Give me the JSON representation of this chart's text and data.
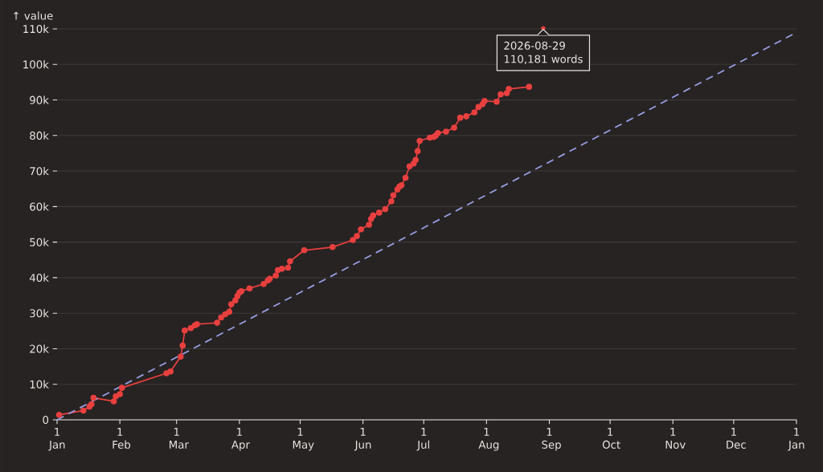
{
  "chart_data": {
    "type": "line",
    "ylabel": "↑ value",
    "grid": "y",
    "xlim": [
      "2026-01-01",
      "2027-01-01"
    ],
    "xticks": [
      {
        "value": "2026-01-01",
        "label": "1 Jan"
      },
      {
        "value": "2026-02-01",
        "label": "1 Feb"
      },
      {
        "value": "2026-03-01",
        "label": "1 Mar"
      },
      {
        "value": "2026-04-01",
        "label": "1 Apr"
      },
      {
        "value": "2026-05-01",
        "label": "1 May"
      },
      {
        "value": "2026-06-01",
        "label": "1 Jun"
      },
      {
        "value": "2026-07-01",
        "label": "1 Jul"
      },
      {
        "value": "2026-08-01",
        "label": "1 Aug"
      },
      {
        "value": "2026-09-01",
        "label": "1 Sep"
      },
      {
        "value": "2026-10-01",
        "label": "1 Oct"
      },
      {
        "value": "2026-11-01",
        "label": "1 Nov"
      },
      {
        "value": "2026-12-01",
        "label": "1 Dec"
      },
      {
        "value": "2027-01-01",
        "label": "1 Jan"
      }
    ],
    "ylim": [
      0,
      110000
    ],
    "yticks": [
      {
        "value": 0,
        "label": "0"
      },
      {
        "value": 10000,
        "label": "10k"
      },
      {
        "value": 20000,
        "label": "20k"
      },
      {
        "value": 30000,
        "label": "30k"
      },
      {
        "value": 40000,
        "label": "40k"
      },
      {
        "value": 50000,
        "label": "50k"
      },
      {
        "value": 60000,
        "label": "60k"
      },
      {
        "value": 70000,
        "label": "70k"
      },
      {
        "value": 80000,
        "label": "80k"
      },
      {
        "value": 90000,
        "label": "90k"
      },
      {
        "value": 100000,
        "label": "100k"
      },
      {
        "value": 110000,
        "label": "110k"
      }
    ],
    "series": [
      {
        "color": "#e8403f",
        "marker": "circle",
        "line_style": "solid",
        "x": [
          "2026-01-02",
          "2026-01-14",
          "2026-01-17",
          "2026-01-18",
          "2026-01-19",
          "2026-01-29",
          "2026-01-30",
          "2026-02-01",
          "2026-02-02",
          "2026-02-24",
          "2026-02-26",
          "2026-03-03",
          "2026-03-04",
          "2026-03-05",
          "2026-03-08",
          "2026-03-10",
          "2026-03-11",
          "2026-03-21",
          "2026-03-23",
          "2026-03-25",
          "2026-03-27",
          "2026-03-28",
          "2026-03-30",
          "2026-03-31",
          "2026-04-01",
          "2026-04-02",
          "2026-04-06",
          "2026-04-13",
          "2026-04-15",
          "2026-04-16",
          "2026-04-19",
          "2026-04-20",
          "2026-04-22",
          "2026-04-25",
          "2026-04-26",
          "2026-05-03",
          "2026-05-17",
          "2026-05-27",
          "2026-05-29",
          "2026-05-31",
          "2026-06-04",
          "2026-06-05",
          "2026-06-06",
          "2026-06-09",
          "2026-06-12",
          "2026-06-15",
          "2026-06-16",
          "2026-06-18",
          "2026-06-19",
          "2026-06-20",
          "2026-06-22",
          "2026-06-24",
          "2026-06-26",
          "2026-06-27",
          "2026-06-28",
          "2026-06-29",
          "2026-07-04",
          "2026-07-06",
          "2026-07-07",
          "2026-07-08",
          "2026-07-12",
          "2026-07-16",
          "2026-07-19",
          "2026-07-22",
          "2026-07-26",
          "2026-07-28",
          "2026-07-30",
          "2026-07-31",
          "2026-08-06",
          "2026-08-08",
          "2026-08-11",
          "2026-08-12",
          "2026-08-22"
        ],
        "values": [
          1400,
          2600,
          3700,
          4400,
          6200,
          5200,
          6600,
          7200,
          9000,
          13100,
          13600,
          17800,
          20900,
          25100,
          25800,
          26600,
          26900,
          27300,
          28800,
          29700,
          30400,
          32500,
          33600,
          34800,
          35800,
          36200,
          37000,
          38200,
          39200,
          39700,
          40600,
          42100,
          42500,
          42800,
          44600,
          47700,
          48600,
          50600,
          51700,
          53600,
          54900,
          56500,
          57500,
          58300,
          59300,
          61500,
          63200,
          64800,
          65600,
          66000,
          68100,
          71300,
          72100,
          73100,
          75600,
          78500,
          79400,
          79600,
          80000,
          80700,
          81100,
          82200,
          85000,
          85400,
          86500,
          88000,
          88800,
          89700,
          89500,
          91600,
          91900,
          93100,
          93700
        ]
      },
      {
        "color": "#9aa0e8",
        "marker": "none",
        "line_style": "dashed",
        "x": [
          "2026-01-01",
          "2027-01-01"
        ],
        "values": [
          0,
          109000
        ]
      }
    ],
    "annotations": [
      {
        "text": "2026-08-29",
        "x": "2026-08-29",
        "y": 110181
      },
      "110,181 words"
    ]
  }
}
